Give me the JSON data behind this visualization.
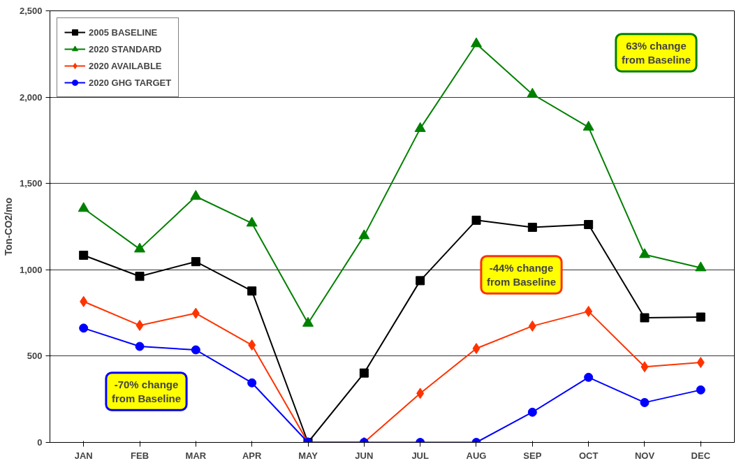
{
  "chart_data": {
    "type": "line",
    "ylabel": "Ton-CO2/mo",
    "categories": [
      "JAN",
      "FEB",
      "MAR",
      "APR",
      "MAY",
      "JUN",
      "JUL",
      "AUG",
      "SEP",
      "OCT",
      "NOV",
      "DEC"
    ],
    "ylim": [
      0,
      2500
    ],
    "yticks": [
      0,
      {
        "value": 500,
        "label": "500"
      },
      {
        "value": 1000,
        "label": "1,000"
      },
      {
        "value": 1500,
        "label": "1,500"
      },
      {
        "value": 2000,
        "label": "2,000"
      },
      {
        "value": 2500,
        "label": "2,500"
      }
    ],
    "grid": "y",
    "legend": "top left",
    "series": [
      {
        "name": "2005 BASELINE",
        "color": "#000000",
        "marker": "square",
        "values": [
          1084,
          962,
          1047,
          877,
          0,
          402,
          937,
          1287,
          1246,
          1262,
          722,
          726
        ]
      },
      {
        "name": "2020 STANDARD",
        "color": "#008000",
        "marker": "triangle",
        "values": [
          1355,
          1120,
          1425,
          1270,
          690,
          1197,
          1818,
          2309,
          2017,
          1826,
          1088,
          1011
        ]
      },
      {
        "name": "2020 AVAILABLE",
        "color": "#ff3300",
        "marker": "diamond",
        "values": [
          816,
          678,
          748,
          564,
          0,
          0,
          284,
          544,
          674,
          759,
          438,
          463
        ]
      },
      {
        "name": "2020 GHG TARGET",
        "color": "#0000ff",
        "marker": "circle",
        "values": [
          662,
          556,
          536,
          345,
          0,
          0,
          0,
          0,
          175,
          377,
          231,
          304
        ]
      }
    ],
    "annotations": [
      "63% change\nfrom Baseline",
      "-44% change\nfrom Baseline",
      "-70% change\nfrom Baseline"
    ]
  }
}
